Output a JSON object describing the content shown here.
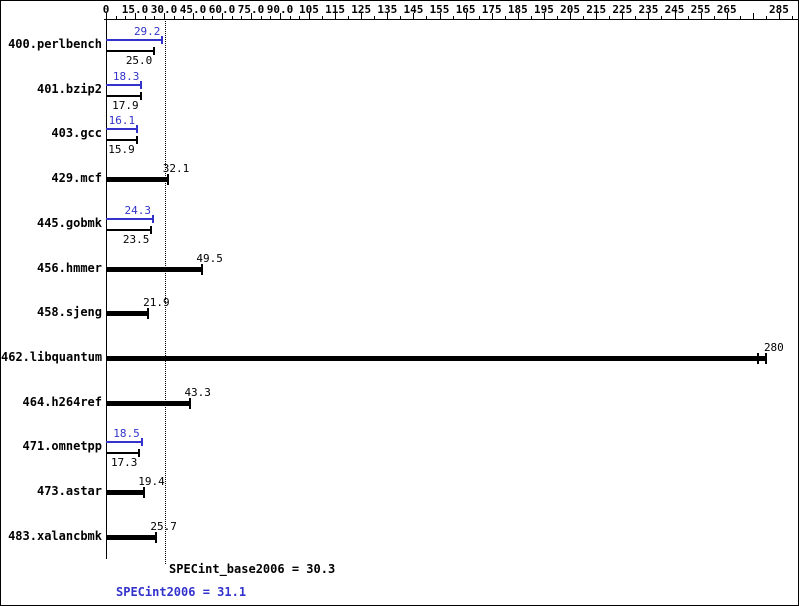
{
  "chart_data": {
    "type": "bar",
    "orientation": "horizontal",
    "title": "",
    "xlabel": "",
    "ylabel": "",
    "colors": {
      "peak": "#3333cc",
      "base": "#000000"
    },
    "axis": {
      "range": [
        0,
        290
      ],
      "break_value": 105,
      "minor_step": 5,
      "ticks": [
        {
          "value": 0,
          "label": "0"
        },
        {
          "value": 15,
          "label": "15.0"
        },
        {
          "value": 30,
          "label": "30.0"
        },
        {
          "value": 45,
          "label": "45.0"
        },
        {
          "value": 60,
          "label": "60.0"
        },
        {
          "value": 75,
          "label": "75.0"
        },
        {
          "value": 90,
          "label": "90.0"
        },
        {
          "value": 105,
          "label": "105"
        },
        {
          "value": 115,
          "label": "115"
        },
        {
          "value": 125,
          "label": "125"
        },
        {
          "value": 135,
          "label": "135"
        },
        {
          "value": 145,
          "label": "145"
        },
        {
          "value": 155,
          "label": "155"
        },
        {
          "value": 165,
          "label": "165"
        },
        {
          "value": 175,
          "label": "175"
        },
        {
          "value": 185,
          "label": "185"
        },
        {
          "value": 195,
          "label": "195"
        },
        {
          "value": 205,
          "label": "205"
        },
        {
          "value": 215,
          "label": "215"
        },
        {
          "value": 225,
          "label": "225"
        },
        {
          "value": 235,
          "label": "235"
        },
        {
          "value": 245,
          "label": "245"
        },
        {
          "value": 255,
          "label": "255"
        },
        {
          "value": 265,
          "label": "265"
        },
        {
          "value": 275,
          "label": ""
        },
        {
          "value": 285,
          "label": "285"
        }
      ]
    },
    "benchmarks": [
      {
        "name": "400.perlbench",
        "type": "pair",
        "peak": {
          "value": 29.2,
          "label": "29.2"
        },
        "base": {
          "value": 25.0,
          "label": "25.0"
        }
      },
      {
        "name": "401.bzip2",
        "type": "pair",
        "peak": {
          "value": 18.3,
          "label": "18.3"
        },
        "base": {
          "value": 17.9,
          "label": "17.9"
        }
      },
      {
        "name": "403.gcc",
        "type": "pair",
        "peak": {
          "value": 16.1,
          "label": "16.1"
        },
        "base": {
          "value": 15.9,
          "label": "15.9"
        }
      },
      {
        "name": "429.mcf",
        "type": "single",
        "value": 32.1,
        "label": "32.1"
      },
      {
        "name": "445.gobmk",
        "type": "pair",
        "peak": {
          "value": 24.3,
          "label": "24.3"
        },
        "base": {
          "value": 23.5,
          "label": "23.5"
        }
      },
      {
        "name": "456.hmmer",
        "type": "single",
        "value": 49.5,
        "label": "49.5"
      },
      {
        "name": "458.sjeng",
        "type": "single",
        "value": 21.9,
        "label": "21.9"
      },
      {
        "name": "462.libquantum",
        "type": "single",
        "value": 280,
        "label": "280",
        "double_cap": true
      },
      {
        "name": "464.h264ref",
        "type": "single",
        "value": 43.3,
        "label": "43.3"
      },
      {
        "name": "471.omnetpp",
        "type": "pair",
        "peak": {
          "value": 18.5,
          "label": "18.5"
        },
        "base": {
          "value": 17.3,
          "label": "17.3"
        }
      },
      {
        "name": "473.astar",
        "type": "single",
        "value": 19.4,
        "label": "19.4"
      },
      {
        "name": "483.xalancbmk",
        "type": "single",
        "value": 25.7,
        "label": "25.7"
      }
    ],
    "footer": {
      "base_line": "SPECint_base2006 = 30.3",
      "base_value": 30.3,
      "peak_line": "SPECint2006 = 31.1",
      "peak_value": 31.1
    }
  }
}
